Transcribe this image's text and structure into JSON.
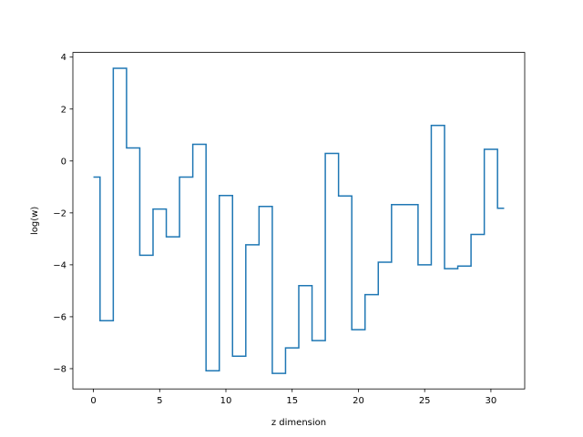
{
  "chart_data": {
    "type": "line",
    "drawstyle": "steps-mid",
    "title": "",
    "xlabel": "z dimension",
    "ylabel": "log(w)",
    "xlim": [
      -1.55,
      32.55
    ],
    "ylim": [
      -8.78,
      4.18
    ],
    "xticks": [
      0,
      5,
      10,
      15,
      20,
      25,
      30
    ],
    "yticks": [
      -8,
      -6,
      -4,
      -2,
      0,
      2,
      4
    ],
    "xtick_labels": [
      "0",
      "5",
      "10",
      "15",
      "20",
      "25",
      "30"
    ],
    "ytick_labels": [
      "−8",
      "−6",
      "−4",
      "−2",
      "0",
      "2",
      "4"
    ],
    "grid": false,
    "series": [
      {
        "color": "#1f77b4",
        "x": [
          0,
          1,
          2,
          3,
          4,
          5,
          6,
          7,
          8,
          9,
          10,
          11,
          12,
          13,
          14,
          15,
          16,
          17,
          18,
          19,
          20,
          21,
          22,
          23,
          24,
          25,
          26,
          27,
          28,
          29,
          30,
          31
        ],
        "y": [
          -0.62,
          -6.15,
          3.57,
          0.5,
          -3.63,
          -1.85,
          -2.92,
          -0.62,
          0.64,
          -8.08,
          -1.33,
          -7.52,
          -3.23,
          -1.75,
          -8.18,
          -7.2,
          -4.8,
          -6.92,
          0.29,
          -1.35,
          -6.5,
          -5.15,
          -3.9,
          -1.68,
          -1.68,
          -4.0,
          1.37,
          -4.15,
          -4.05,
          -2.83,
          0.45,
          -1.82
        ]
      }
    ]
  }
}
